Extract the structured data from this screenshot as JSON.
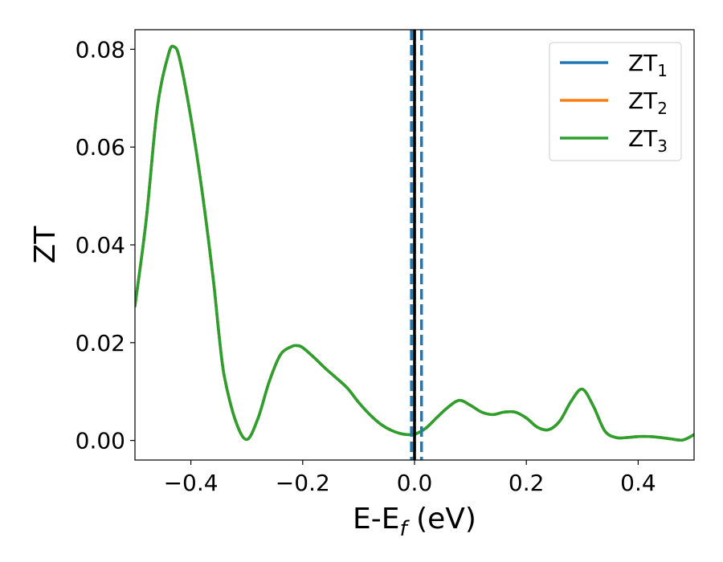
{
  "chart_data": {
    "type": "line",
    "xlabel": "E-E",
    "xlabel_sub": "f",
    "xlabel_unit": " (eV)",
    "ylabel": "ZT",
    "xlim": [
      -0.5,
      0.5
    ],
    "ylim": [
      -0.004,
      0.084
    ],
    "xticks": [
      -0.4,
      -0.2,
      0.0,
      0.2,
      0.4
    ],
    "xtick_labels": [
      "−0.4",
      "−0.2",
      "0.0",
      "0.2",
      "0.4"
    ],
    "yticks": [
      0.0,
      0.02,
      0.04,
      0.06,
      0.08
    ],
    "ytick_labels": [
      "0.00",
      "0.02",
      "0.04",
      "0.06",
      "0.08"
    ],
    "grid": false,
    "legend_position": "top-right",
    "reference_lines": [
      {
        "x": 0.0,
        "style": "solid",
        "color": "#000000"
      },
      {
        "x": -0.0055,
        "style": "dashed",
        "color": "#1f77b4"
      },
      {
        "x": 0.0,
        "style": "dashed",
        "color": "#1f77b4"
      },
      {
        "x": 0.0125,
        "style": "dashed",
        "color": "#1f77b4"
      }
    ],
    "x": [
      -0.5,
      -0.48,
      -0.46,
      -0.44,
      -0.43,
      -0.42,
      -0.4,
      -0.38,
      -0.36,
      -0.35,
      -0.34,
      -0.32,
      -0.3,
      -0.28,
      -0.26,
      -0.24,
      -0.22,
      -0.21,
      -0.2,
      -0.18,
      -0.16,
      -0.14,
      -0.12,
      -0.1,
      -0.08,
      -0.06,
      -0.04,
      -0.02,
      0.0,
      0.02,
      0.04,
      0.06,
      0.08,
      0.1,
      0.12,
      0.14,
      0.16,
      0.18,
      0.2,
      0.22,
      0.24,
      0.26,
      0.28,
      0.3,
      0.32,
      0.34,
      0.36,
      0.38,
      0.4,
      0.42,
      0.44,
      0.46,
      0.48,
      0.5
    ],
    "series": [
      {
        "name": "ZT",
        "name_sub": "1",
        "color": "#1f77b4",
        "values": [
          0.0275,
          0.045,
          0.068,
          0.079,
          0.0805,
          0.078,
          0.066,
          0.051,
          0.033,
          0.022,
          0.013,
          0.004,
          0.0002,
          0.0045,
          0.012,
          0.0175,
          0.0192,
          0.0194,
          0.019,
          0.017,
          0.0148,
          0.0128,
          0.0107,
          0.0078,
          0.0053,
          0.0033,
          0.002,
          0.0013,
          0.0013,
          0.0025,
          0.0047,
          0.0068,
          0.0082,
          0.0072,
          0.0058,
          0.0053,
          0.0058,
          0.0058,
          0.0046,
          0.0027,
          0.0022,
          0.004,
          0.008,
          0.0105,
          0.007,
          0.002,
          0.0006,
          0.0006,
          0.0008,
          0.0008,
          0.0006,
          0.0003,
          0.0001,
          0.0012
        ]
      },
      {
        "name": "ZT",
        "name_sub": "2",
        "color": "#ff7f0e",
        "values": [
          0.0275,
          0.045,
          0.068,
          0.079,
          0.0805,
          0.078,
          0.066,
          0.051,
          0.033,
          0.022,
          0.013,
          0.004,
          0.0002,
          0.0045,
          0.012,
          0.0175,
          0.0192,
          0.0194,
          0.019,
          0.017,
          0.0148,
          0.0128,
          0.0107,
          0.0078,
          0.0053,
          0.0033,
          0.002,
          0.0013,
          0.0013,
          0.0025,
          0.0047,
          0.0068,
          0.0082,
          0.0072,
          0.0058,
          0.0053,
          0.0058,
          0.0058,
          0.0046,
          0.0027,
          0.0022,
          0.004,
          0.008,
          0.0105,
          0.007,
          0.002,
          0.0006,
          0.0006,
          0.0008,
          0.0008,
          0.0006,
          0.0003,
          0.0001,
          0.0012
        ]
      },
      {
        "name": "ZT",
        "name_sub": "3",
        "color": "#2ca02c",
        "values": [
          0.0275,
          0.045,
          0.068,
          0.079,
          0.0805,
          0.078,
          0.066,
          0.051,
          0.033,
          0.022,
          0.013,
          0.004,
          0.0002,
          0.0045,
          0.012,
          0.0175,
          0.0192,
          0.0194,
          0.019,
          0.017,
          0.0148,
          0.0128,
          0.0107,
          0.0078,
          0.0053,
          0.0033,
          0.002,
          0.0013,
          0.0013,
          0.0025,
          0.0047,
          0.0068,
          0.0082,
          0.0072,
          0.0058,
          0.0053,
          0.0058,
          0.0058,
          0.0046,
          0.0027,
          0.0022,
          0.004,
          0.008,
          0.0105,
          0.007,
          0.002,
          0.0006,
          0.0006,
          0.0008,
          0.0008,
          0.0006,
          0.0003,
          0.0001,
          0.0012
        ]
      }
    ]
  }
}
